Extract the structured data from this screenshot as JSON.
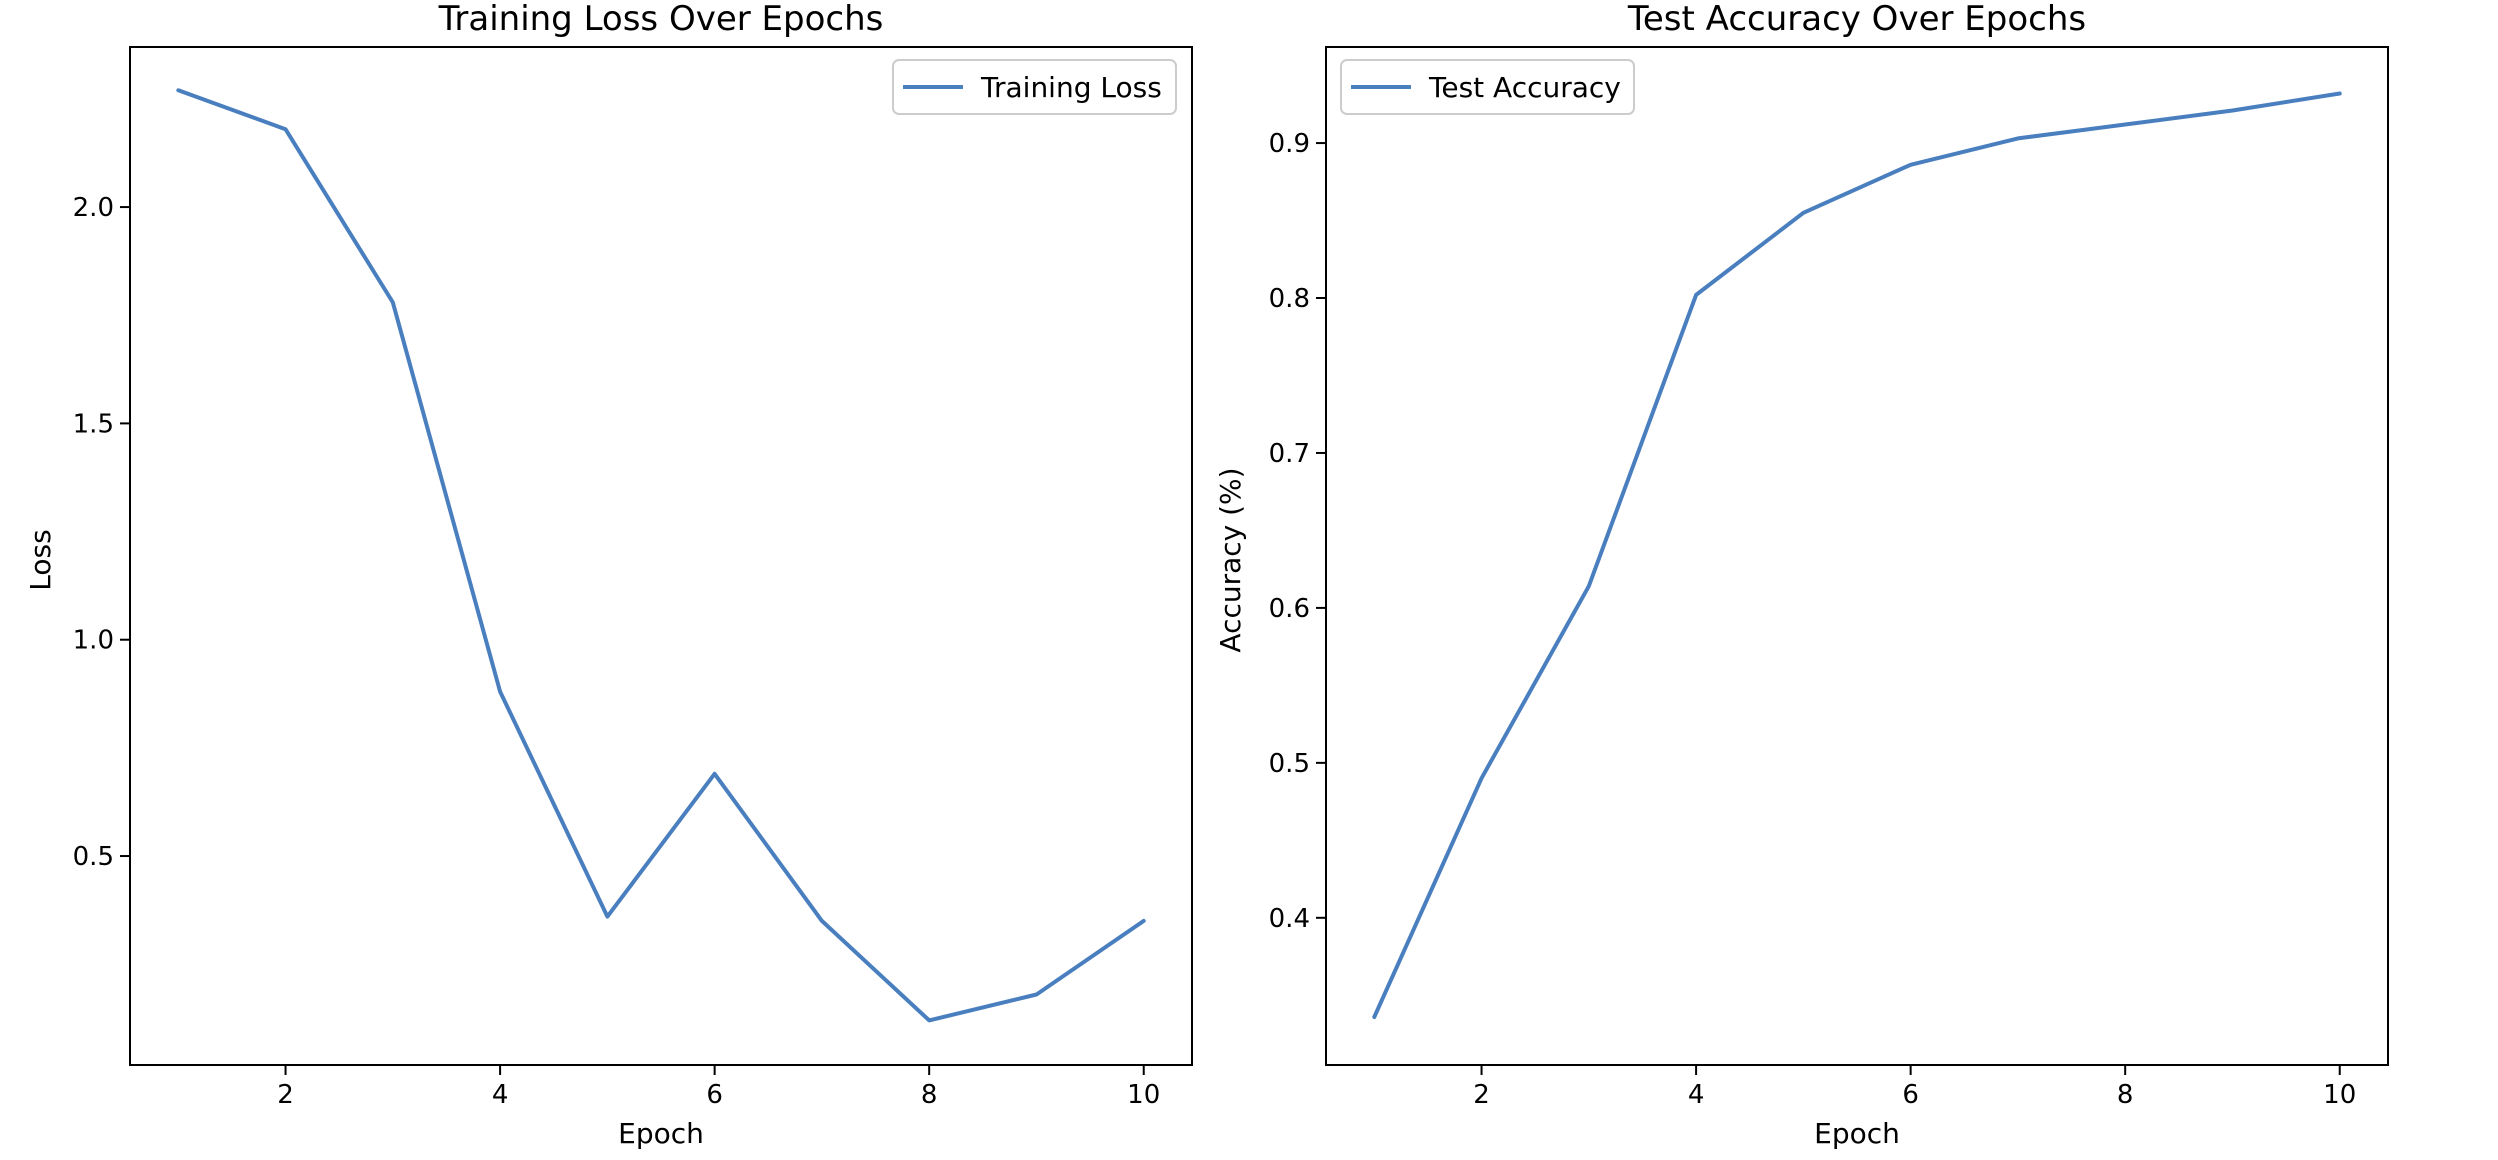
{
  "chart_data": [
    {
      "type": "line",
      "title": "Training Loss Over Epochs",
      "xlabel": "Epoch",
      "ylabel": "Loss",
      "xlim": [
        0.55,
        10.45
      ],
      "ylim": [
        0.017,
        2.37
      ],
      "xticks": [
        2,
        4,
        6,
        8,
        10
      ],
      "yticks": [
        0.5,
        1.0,
        1.5,
        2.0
      ],
      "xtick_labels": [
        "2",
        "4",
        "6",
        "8",
        "10"
      ],
      "ytick_labels": [
        "0.5",
        "1.0",
        "1.5",
        "2.0"
      ],
      "grid": false,
      "legend": "upper-right",
      "x": [
        1,
        2,
        3,
        4,
        5,
        6,
        7,
        8,
        9,
        10
      ],
      "series": [
        {
          "name": "Training Loss",
          "color": "#4a7fbf",
          "values": [
            2.27,
            2.18,
            1.78,
            0.88,
            0.36,
            0.69,
            0.35,
            0.12,
            0.18,
            0.35
          ]
        }
      ]
    },
    {
      "type": "line",
      "title": "Test Accuracy Over Epochs",
      "xlabel": "Epoch",
      "ylabel": "Accuracy (%)",
      "xlim": [
        0.55,
        10.45
      ],
      "ylim": [
        0.305,
        0.962
      ],
      "xticks": [
        2,
        4,
        6,
        8,
        10
      ],
      "yticks": [
        0.4,
        0.5,
        0.6,
        0.7,
        0.8,
        0.9
      ],
      "xtick_labels": [
        "2",
        "4",
        "6",
        "8",
        "10"
      ],
      "ytick_labels": [
        "0.4",
        "0.5",
        "0.6",
        "0.7",
        "0.8",
        "0.9"
      ],
      "grid": false,
      "legend": "upper-left",
      "x": [
        1,
        2,
        3,
        4,
        5,
        6,
        7,
        8,
        9,
        10
      ],
      "series": [
        {
          "name": "Test Accuracy",
          "color": "#4a7fbf",
          "values": [
            0.336,
            0.49,
            0.614,
            0.802,
            0.855,
            0.886,
            0.903,
            0.912,
            0.921,
            0.932
          ]
        }
      ]
    }
  ]
}
